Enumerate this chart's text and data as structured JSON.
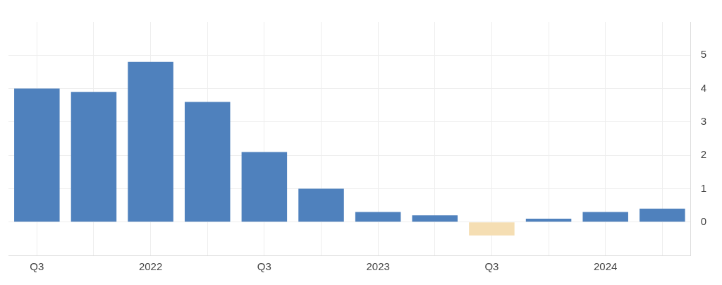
{
  "chart_data": {
    "type": "bar",
    "categories": [
      "Q3",
      null,
      "2022",
      null,
      "Q3",
      null,
      "2023",
      null,
      "Q3",
      null,
      "2024",
      null
    ],
    "values": [
      4.0,
      3.9,
      4.8,
      3.6,
      2.1,
      1.0,
      0.3,
      0.2,
      -0.4,
      0.1,
      0.3,
      0.4
    ],
    "colors": [
      "#4f81bd",
      "#4f81bd",
      "#4f81bd",
      "#4f81bd",
      "#4f81bd",
      "#4f81bd",
      "#4f81bd",
      "#4f81bd",
      "#f5deb3",
      "#4f81bd",
      "#4f81bd",
      "#4f81bd"
    ],
    "ylim": [
      -1,
      6
    ],
    "yticks": [
      0,
      1,
      2,
      3,
      4,
      5
    ],
    "grid": true
  }
}
